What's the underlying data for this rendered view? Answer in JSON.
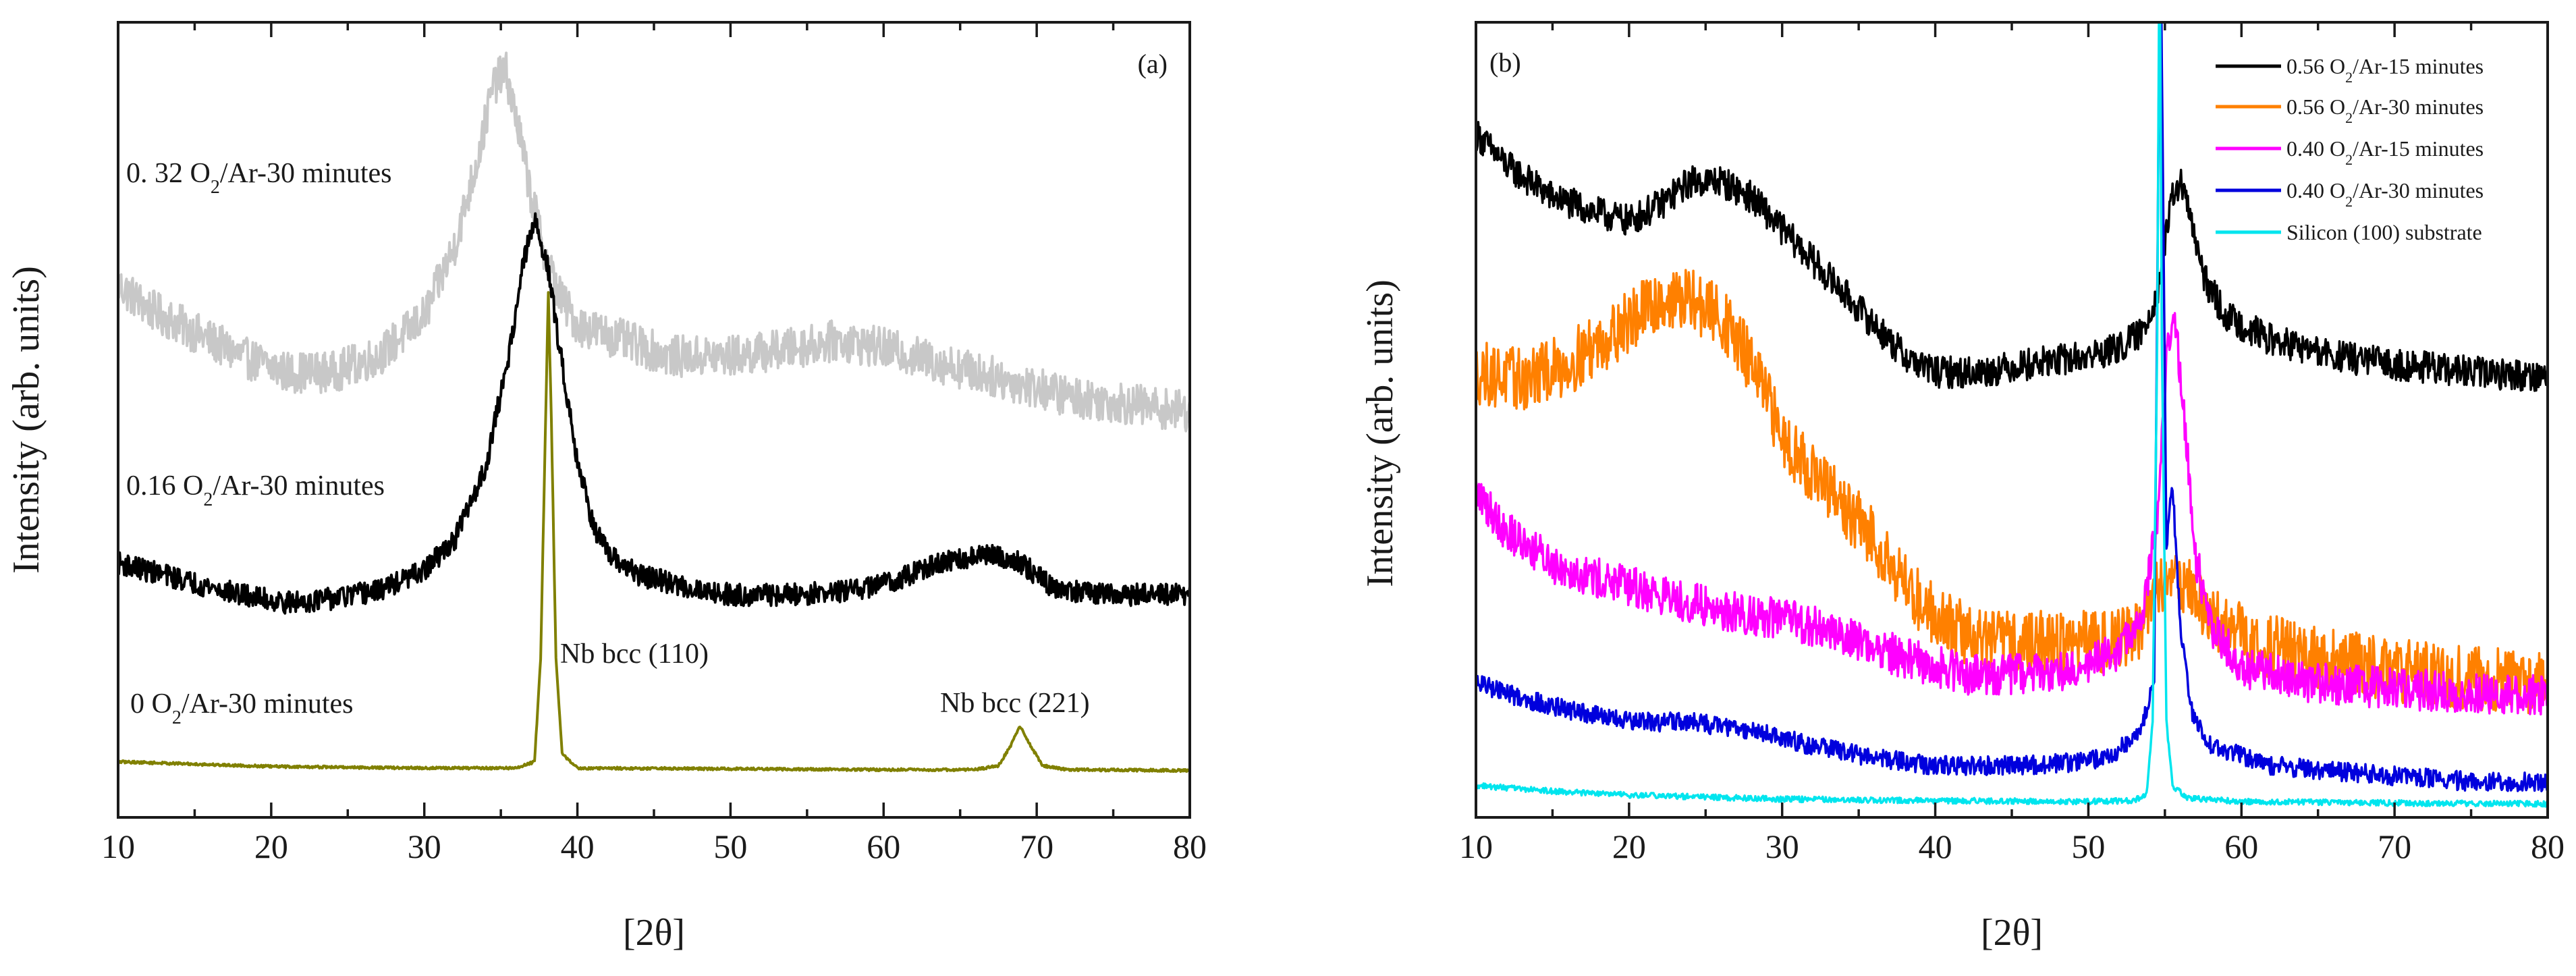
{
  "chart_data": [
    {
      "type": "line",
      "panel_label": "(a)",
      "xlabel": "[2θ]",
      "ylabel": "Intensity (arb. units)",
      "xlim": [
        10,
        80
      ],
      "ylim": [
        0,
        100
      ],
      "x_ticks": [
        10,
        20,
        30,
        40,
        50,
        60,
        70,
        80
      ],
      "x_tick_labels": [
        "10",
        "20",
        "30",
        "40",
        "50",
        "60",
        "70",
        "80"
      ],
      "grid": false,
      "series": [
        {
          "name": "0. 32 O2/Ar-30 minutes",
          "label_prefix": "0. 32 O",
          "label_sub": "2",
          "label_suffix": "/Ar-30 minutes",
          "color": "#c8c8c8",
          "noise": 2.6,
          "points": [
            [
              10,
              67
            ],
            [
              12,
              64
            ],
            [
              15,
              61
            ],
            [
              18,
              58
            ],
            [
              21,
              56
            ],
            [
              24,
              56
            ],
            [
              27,
              58
            ],
            [
              30,
              63
            ],
            [
              32,
              72
            ],
            [
              33.5,
              83
            ],
            [
              34.5,
              92
            ],
            [
              35.3,
              94
            ],
            [
              36,
              88
            ],
            [
              37,
              78
            ],
            [
              38,
              70
            ],
            [
              39,
              65
            ],
            [
              40,
              62
            ],
            [
              43,
              60
            ],
            [
              46,
              58
            ],
            [
              50,
              58
            ],
            [
              54,
              59
            ],
            [
              57,
              60
            ],
            [
              60,
              59
            ],
            [
              64,
              57
            ],
            [
              68,
              55
            ],
            [
              72,
              53
            ],
            [
              76,
              52
            ],
            [
              80,
              51
            ]
          ]
        },
        {
          "name": "0.16 O2/Ar-30 minutes",
          "label_prefix": "0.16 O",
          "label_sub": "2",
          "label_suffix": "/Ar-30 minutes",
          "color": "#000000",
          "noise": 1.4,
          "points": [
            [
              10,
              32
            ],
            [
              12,
              31
            ],
            [
              15,
              29.5
            ],
            [
              18,
              28
            ],
            [
              21,
              27
            ],
            [
              24,
              27.5
            ],
            [
              27,
              28.5
            ],
            [
              30,
              31
            ],
            [
              32,
              35
            ],
            [
              34,
              44
            ],
            [
              35.5,
              58
            ],
            [
              36.5,
              70
            ],
            [
              37.2,
              75
            ],
            [
              38,
              70
            ],
            [
              39,
              57
            ],
            [
              40,
              45
            ],
            [
              41,
              37
            ],
            [
              42,
              33
            ],
            [
              44,
              30.5
            ],
            [
              47,
              29
            ],
            [
              50,
              28
            ],
            [
              54,
              28
            ],
            [
              58,
              28.5
            ],
            [
              61,
              30
            ],
            [
              63,
              31.5
            ],
            [
              65,
              32.5
            ],
            [
              67,
              33
            ],
            [
              69,
              32
            ],
            [
              71,
              29
            ],
            [
              74,
              28
            ],
            [
              77,
              28
            ],
            [
              80,
              28
            ]
          ]
        },
        {
          "name": "0 O2/Ar-30 minutes",
          "label_prefix": "0 O",
          "label_sub": "2",
          "label_suffix": "/Ar-30 minutes",
          "color": "#808000",
          "noise": 0.15,
          "points": [
            [
              10,
              7
            ],
            [
              20,
              6.4
            ],
            [
              30,
              6.2
            ],
            [
              36,
              6.2
            ],
            [
              37.2,
              7
            ],
            [
              37.6,
              20
            ],
            [
              37.9,
              48
            ],
            [
              38.1,
              66
            ],
            [
              38.3,
              50
            ],
            [
              38.6,
              20
            ],
            [
              39,
              8
            ],
            [
              40,
              6.2
            ],
            [
              50,
              6.1
            ],
            [
              60,
              6.0
            ],
            [
              66,
              6.0
            ],
            [
              67.5,
              6.5
            ],
            [
              68.3,
              9
            ],
            [
              68.9,
              11.5
            ],
            [
              69.6,
              9
            ],
            [
              70.4,
              6.5
            ],
            [
              72,
              6.0
            ],
            [
              80,
              5.9
            ]
          ]
        }
      ],
      "annotations": [
        "Nb bcc (110)",
        "Nb bcc (221)"
      ]
    },
    {
      "type": "line",
      "panel_label": "(b)",
      "xlabel": "[2θ]",
      "ylabel": "Intensity (arb. units)",
      "xlim": [
        10,
        80
      ],
      "ylim": [
        0,
        100
      ],
      "x_ticks": [
        10,
        20,
        30,
        40,
        50,
        60,
        70,
        80
      ],
      "x_tick_labels": [
        "10",
        "20",
        "30",
        "40",
        "50",
        "60",
        "70",
        "80"
      ],
      "grid": false,
      "legend_position": "top-right",
      "series": [
        {
          "name": "0.56 O2/Ar-15 minutes",
          "label_prefix": "0.56 O",
          "label_sub": "2",
          "label_suffix": "/Ar-15 minutes",
          "color": "#000000",
          "noise": 2.0,
          "points": [
            [
              10,
              86
            ],
            [
              12,
              82
            ],
            [
              15,
              78
            ],
            [
              18,
              76
            ],
            [
              20,
              75
            ],
            [
              22,
              77
            ],
            [
              24,
              80
            ],
            [
              26,
              80
            ],
            [
              28,
              78
            ],
            [
              30,
              74
            ],
            [
              33,
              68
            ],
            [
              36,
              62
            ],
            [
              38,
              58
            ],
            [
              40,
              56
            ],
            [
              43,
              56
            ],
            [
              46,
              57
            ],
            [
              50,
              58
            ],
            [
              52,
              59
            ],
            [
              53.5,
              61
            ],
            [
              54.5,
              66
            ],
            [
              55.5,
              78
            ],
            [
              56,
              80
            ],
            [
              56.6,
              76
            ],
            [
              57.5,
              68
            ],
            [
              59,
              63
            ],
            [
              62,
              60
            ],
            [
              66,
              58
            ],
            [
              70,
              57
            ],
            [
              75,
              56
            ],
            [
              80,
              55.5
            ]
          ]
        },
        {
          "name": "0.56 O2/Ar-30 minutes",
          "label_prefix": "0.56 O",
          "label_sub": "2",
          "label_suffix": "/Ar-30 minutes",
          "color": "#ff8000",
          "noise": 4.0,
          "points": [
            [
              10,
              56
            ],
            [
              13,
              55
            ],
            [
              16,
              57
            ],
            [
              19,
              61
            ],
            [
              22,
              65
            ],
            [
              24,
              65
            ],
            [
              26,
              63
            ],
            [
              28,
              57
            ],
            [
              30,
              48
            ],
            [
              33,
              41
            ],
            [
              36,
              35
            ],
            [
              39,
              27
            ],
            [
              42,
              23
            ],
            [
              45,
              22
            ],
            [
              48,
              22
            ],
            [
              50,
              22
            ],
            [
              52,
              22.5
            ],
            [
              53.5,
              24
            ],
            [
              54.5,
              29
            ],
            [
              55.5,
              31
            ],
            [
              56.5,
              29
            ],
            [
              58,
              25
            ],
            [
              61,
              22
            ],
            [
              65,
              20
            ],
            [
              70,
              18.5
            ],
            [
              75,
              17.5
            ],
            [
              80,
              17
            ]
          ]
        },
        {
          "name": "0.40 O2/Ar-15 minutes",
          "label_prefix": "0.40 O",
          "label_sub": "2",
          "label_suffix": "/Ar-15 minutes",
          "color": "#ff00ff",
          "noise": 2.6,
          "points": [
            [
              10,
              41
            ],
            [
              12,
              36
            ],
            [
              15,
              32
            ],
            [
              18,
              30
            ],
            [
              22,
              28
            ],
            [
              26,
              26
            ],
            [
              30,
              25
            ],
            [
              34,
              23
            ],
            [
              38,
              20
            ],
            [
              42,
              18
            ],
            [
              46,
              18
            ],
            [
              50,
              19
            ],
            [
              52,
              21
            ],
            [
              53.5,
              25
            ],
            [
              54.5,
              37
            ],
            [
              55.2,
              60
            ],
            [
              55.7,
              62
            ],
            [
              56.3,
              50
            ],
            [
              57,
              33
            ],
            [
              58,
              24
            ],
            [
              60,
              19
            ],
            [
              64,
              17
            ],
            [
              68,
              16.5
            ],
            [
              72,
              16
            ],
            [
              76,
              15.5
            ],
            [
              80,
              15.5
            ]
          ]
        },
        {
          "name": "0.40 O2/Ar-30 minutes",
          "label_prefix": "0.40 O",
          "label_sub": "2",
          "label_suffix": "/Ar-30 minutes",
          "color": "#0000dd",
          "noise": 1.2,
          "points": [
            [
              10,
              17
            ],
            [
              13,
              15
            ],
            [
              16,
              13.5
            ],
            [
              20,
              12
            ],
            [
              24,
              12
            ],
            [
              28,
              11
            ],
            [
              32,
              9
            ],
            [
              36,
              7.5
            ],
            [
              40,
              6.5
            ],
            [
              45,
              6.5
            ],
            [
              50,
              7
            ],
            [
              52,
              8.5
            ],
            [
              53.5,
              11
            ],
            [
              54.3,
              18
            ],
            [
              54.7,
              115
            ],
            [
              55.1,
              34
            ],
            [
              55.5,
              42
            ],
            [
              56,
              24
            ],
            [
              56.8,
              13
            ],
            [
              58,
              9
            ],
            [
              62,
              6.5
            ],
            [
              68,
              5.5
            ],
            [
              75,
              4.5
            ],
            [
              80,
              4.5
            ]
          ]
        },
        {
          "name": "Silicon (100) substrate",
          "label_prefix": "Silicon (100) substrate",
          "label_sub": "",
          "label_suffix": "",
          "color": "#00e5ee",
          "noise": 0.35,
          "points": [
            [
              10,
              4
            ],
            [
              15,
              3.3
            ],
            [
              20,
              2.8
            ],
            [
              30,
              2.3
            ],
            [
              40,
              2.1
            ],
            [
              50,
              2.0
            ],
            [
              53,
              2.1
            ],
            [
              53.8,
              3.0
            ],
            [
              54.2,
              12
            ],
            [
              54.5,
              60
            ],
            [
              54.65,
              115
            ],
            [
              54.8,
              60
            ],
            [
              55.1,
              12
            ],
            [
              55.5,
              4
            ],
            [
              56.5,
              2.4
            ],
            [
              60,
              2.0
            ],
            [
              70,
              1.8
            ],
            [
              80,
              1.7
            ]
          ]
        }
      ]
    }
  ]
}
